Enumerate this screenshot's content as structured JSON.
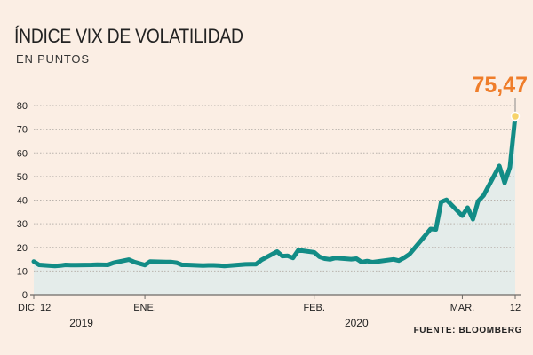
{
  "header": {
    "title": "ÍNDICE VIX DE VOLATILIDAD",
    "subtitle": "EN PUNTOS"
  },
  "footer": {
    "source": "FUENTE: BLOOMBERG"
  },
  "colors": {
    "background": "#fbeee4",
    "line": "#128c86",
    "area": "#e4ecea",
    "grid": "#b9b2ac",
    "callout": "#ef7d2a",
    "marker_fill": "#f7d36a"
  },
  "chart_data": {
    "type": "area",
    "title": "ÍNDICE VIX DE VOLATILIDAD",
    "subtitle": "EN PUNTOS",
    "ylabel": "",
    "xlabel": "",
    "ylim": [
      0,
      80
    ],
    "yticks": [
      0,
      10,
      20,
      30,
      40,
      50,
      60,
      70,
      80
    ],
    "xlim": [
      "2019-12-12",
      "2020-03-12"
    ],
    "x_ticks": [
      {
        "date": "2019-12-12",
        "label": "DIC. 12"
      },
      {
        "date": "2020-01-02",
        "label": "ENE."
      },
      {
        "date": "2020-02-03",
        "label": "FEB."
      },
      {
        "date": "2020-03-02",
        "label": "MAR."
      },
      {
        "date": "2020-03-12",
        "label": "12"
      }
    ],
    "year_labels": [
      {
        "date": "2019-12-21",
        "label": "2019"
      },
      {
        "date": "2020-02-11",
        "label": "2020"
      }
    ],
    "grid": true,
    "callout": {
      "date": "2020-03-12",
      "value": 75.47,
      "label": "75,47"
    },
    "series": [
      {
        "points": [
          [
            "2019-12-12",
            14.0
          ],
          [
            "2019-12-13",
            12.6
          ],
          [
            "2019-12-16",
            12.1
          ],
          [
            "2019-12-17",
            12.3
          ],
          [
            "2019-12-18",
            12.6
          ],
          [
            "2019-12-19",
            12.5
          ],
          [
            "2019-12-20",
            12.5
          ],
          [
            "2019-12-23",
            12.6
          ],
          [
            "2019-12-24",
            12.7
          ],
          [
            "2019-12-26",
            12.6
          ],
          [
            "2019-12-27",
            13.4
          ],
          [
            "2019-12-30",
            14.8
          ],
          [
            "2019-12-31",
            13.8
          ],
          [
            "2020-01-02",
            12.5
          ],
          [
            "2020-01-03",
            14.0
          ],
          [
            "2020-01-06",
            13.8
          ],
          [
            "2020-01-07",
            13.8
          ],
          [
            "2020-01-08",
            13.5
          ],
          [
            "2020-01-09",
            12.6
          ],
          [
            "2020-01-10",
            12.6
          ],
          [
            "2020-01-13",
            12.3
          ],
          [
            "2020-01-14",
            12.4
          ],
          [
            "2020-01-15",
            12.4
          ],
          [
            "2020-01-16",
            12.3
          ],
          [
            "2020-01-17",
            12.1
          ],
          [
            "2020-01-21",
            12.8
          ],
          [
            "2020-01-22",
            12.9
          ],
          [
            "2020-01-23",
            12.9
          ],
          [
            "2020-01-24",
            14.6
          ],
          [
            "2020-01-27",
            18.2
          ],
          [
            "2020-01-28",
            16.3
          ],
          [
            "2020-01-29",
            16.4
          ],
          [
            "2020-01-30",
            15.5
          ],
          [
            "2020-01-31",
            18.8
          ],
          [
            "2020-02-03",
            17.9
          ],
          [
            "2020-02-04",
            16.0
          ],
          [
            "2020-02-05",
            15.2
          ],
          [
            "2020-02-06",
            14.9
          ],
          [
            "2020-02-07",
            15.5
          ],
          [
            "2020-02-10",
            15.0
          ],
          [
            "2020-02-11",
            15.2
          ],
          [
            "2020-02-12",
            13.7
          ],
          [
            "2020-02-13",
            14.2
          ],
          [
            "2020-02-14",
            13.7
          ],
          [
            "2020-02-18",
            14.9
          ],
          [
            "2020-02-19",
            14.4
          ],
          [
            "2020-02-20",
            15.6
          ],
          [
            "2020-02-21",
            17.1
          ],
          [
            "2020-02-24",
            25.0
          ],
          [
            "2020-02-25",
            27.8
          ],
          [
            "2020-02-26",
            27.6
          ],
          [
            "2020-02-27",
            39.2
          ],
          [
            "2020-02-28",
            40.1
          ],
          [
            "2020-03-02",
            33.4
          ],
          [
            "2020-03-03",
            36.8
          ],
          [
            "2020-03-04",
            31.9
          ],
          [
            "2020-03-05",
            39.6
          ],
          [
            "2020-03-06",
            41.9
          ],
          [
            "2020-03-09",
            54.5
          ],
          [
            "2020-03-10",
            47.3
          ],
          [
            "2020-03-11",
            53.9
          ],
          [
            "2020-03-12",
            75.47
          ]
        ]
      }
    ]
  }
}
